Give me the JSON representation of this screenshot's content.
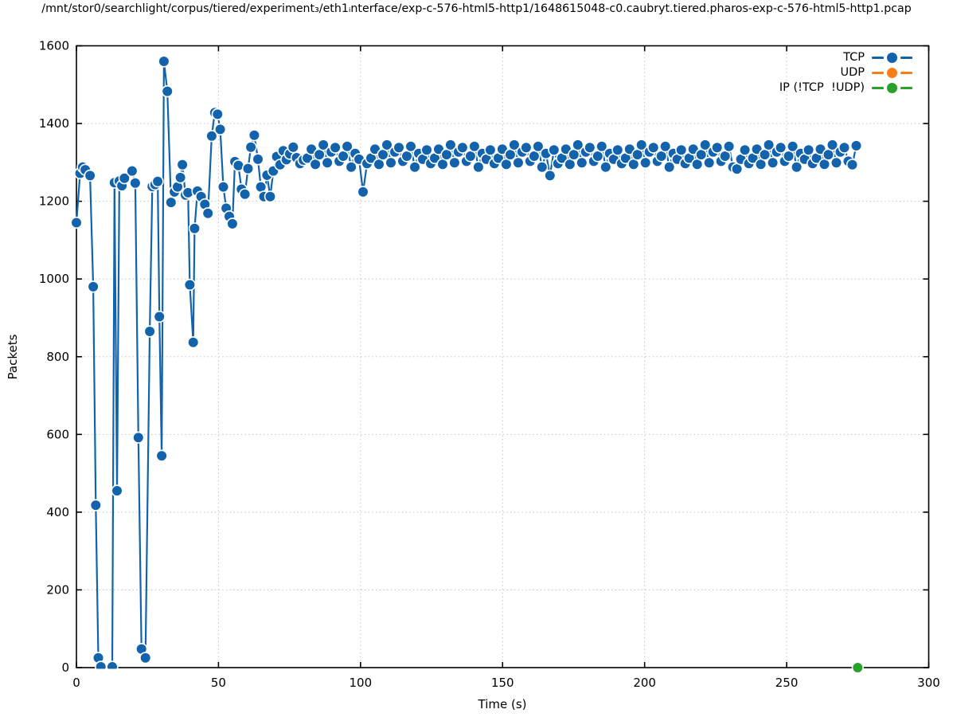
{
  "chart_data": {
    "type": "line",
    "title": "/mnt/stor0/searchlight/corpus/tiered/experiment₃/eth1ᵢnterface/exp-c-576-html5-http1/1648615048-c0.caubryt.tiered.pharos-exp-c-576-html5-http1.pcap",
    "xlabel": "Time (s)",
    "ylabel": "Packets",
    "xlim": [
      0,
      300
    ],
    "ylim": [
      0,
      1600
    ],
    "xticks": [
      0,
      50,
      100,
      150,
      200,
      250,
      300
    ],
    "yticks": [
      0,
      200,
      400,
      600,
      800,
      1000,
      1200,
      1400,
      1600
    ],
    "grid": true,
    "legend_position": "top-right",
    "marker": "circle",
    "series": [
      {
        "name": "TCP",
        "color": "#1263ab",
        "marker": "circle",
        "clip": true,
        "points": [
          [
            0.0,
            1145
          ],
          [
            1.3,
            1272
          ],
          [
            2.2,
            1288
          ],
          [
            3.1,
            1281
          ],
          [
            4.8,
            1266
          ],
          [
            5.9,
            980
          ],
          [
            6.8,
            418
          ],
          [
            7.7,
            25
          ],
          [
            8.6,
            2
          ],
          [
            12.6,
            2
          ],
          [
            13.4,
            1248
          ],
          [
            14.3,
            455
          ],
          [
            15.1,
            1252
          ],
          [
            16.0,
            1240
          ],
          [
            16.9,
            1259
          ],
          [
            19.6,
            1278
          ],
          [
            20.7,
            1247
          ],
          [
            21.8,
            592
          ],
          [
            22.9,
            48
          ],
          [
            24.3,
            25
          ],
          [
            25.8,
            865
          ],
          [
            26.7,
            1238
          ],
          [
            27.7,
            1243
          ],
          [
            28.6,
            1251
          ],
          [
            29.2,
            903
          ],
          [
            30.0,
            545
          ],
          [
            30.8,
            1560
          ],
          [
            32.0,
            1483
          ],
          [
            33.3,
            1197
          ],
          [
            34.5,
            1224
          ],
          [
            35.6,
            1237
          ],
          [
            36.6,
            1261
          ],
          [
            37.3,
            1294
          ],
          [
            38.4,
            1216
          ],
          [
            39.3,
            1222
          ],
          [
            39.9,
            985
          ],
          [
            41.1,
            837
          ],
          [
            41.6,
            1130
          ],
          [
            42.6,
            1226
          ],
          [
            43.9,
            1212
          ],
          [
            45.2,
            1192
          ],
          [
            46.3,
            1169
          ],
          [
            47.6,
            1368
          ],
          [
            48.7,
            1428
          ],
          [
            49.7,
            1424
          ],
          [
            50.6,
            1385
          ],
          [
            51.7,
            1237
          ],
          [
            52.7,
            1182
          ],
          [
            53.8,
            1161
          ],
          [
            54.9,
            1142
          ],
          [
            55.8,
            1302
          ],
          [
            57.0,
            1292
          ],
          [
            58.1,
            1231
          ],
          [
            59.3,
            1218
          ],
          [
            60.4,
            1284
          ],
          [
            61.4,
            1339
          ],
          [
            62.6,
            1370
          ],
          [
            63.9,
            1308
          ],
          [
            64.9,
            1237
          ],
          [
            66.0,
            1212
          ],
          [
            67.1,
            1267
          ],
          [
            68.2,
            1212
          ],
          [
            69.3,
            1278
          ],
          [
            70.5,
            1315
          ],
          [
            71.7,
            1294
          ],
          [
            72.8,
            1330
          ],
          [
            73.9,
            1307
          ],
          [
            75.1,
            1322
          ],
          [
            76.3,
            1339
          ],
          [
            77.5,
            1312
          ],
          [
            78.7,
            1297
          ],
          [
            79.9,
            1306
          ],
          [
            81.3,
            1311
          ],
          [
            82.7,
            1334
          ],
          [
            84.1,
            1295
          ],
          [
            85.5,
            1320
          ],
          [
            86.9,
            1345
          ],
          [
            88.3,
            1299
          ],
          [
            89.7,
            1327
          ],
          [
            91.1,
            1338
          ],
          [
            92.5,
            1303
          ],
          [
            93.9,
            1316
          ],
          [
            95.3,
            1341
          ],
          [
            96.7,
            1288
          ],
          [
            98.1,
            1323
          ],
          [
            99.5,
            1308
          ],
          [
            100.9,
            1224
          ],
          [
            102.3,
            1297
          ],
          [
            103.7,
            1311
          ],
          [
            105.1,
            1334
          ],
          [
            106.5,
            1295
          ],
          [
            107.9,
            1320
          ],
          [
            109.3,
            1345
          ],
          [
            110.7,
            1299
          ],
          [
            112.1,
            1327
          ],
          [
            113.5,
            1338
          ],
          [
            114.9,
            1303
          ],
          [
            116.3,
            1316
          ],
          [
            117.7,
            1341
          ],
          [
            119.1,
            1288
          ],
          [
            120.5,
            1323
          ],
          [
            121.9,
            1308
          ],
          [
            123.3,
            1332
          ],
          [
            124.7,
            1297
          ],
          [
            126.1,
            1311
          ],
          [
            127.5,
            1334
          ],
          [
            128.9,
            1295
          ],
          [
            130.3,
            1320
          ],
          [
            131.7,
            1345
          ],
          [
            133.1,
            1299
          ],
          [
            134.5,
            1327
          ],
          [
            135.9,
            1338
          ],
          [
            137.3,
            1303
          ],
          [
            138.7,
            1316
          ],
          [
            140.1,
            1341
          ],
          [
            141.5,
            1288
          ],
          [
            142.9,
            1323
          ],
          [
            144.3,
            1308
          ],
          [
            145.7,
            1332
          ],
          [
            147.1,
            1297
          ],
          [
            148.5,
            1311
          ],
          [
            149.9,
            1334
          ],
          [
            151.3,
            1295
          ],
          [
            152.7,
            1320
          ],
          [
            154.1,
            1345
          ],
          [
            155.5,
            1299
          ],
          [
            156.9,
            1327
          ],
          [
            158.3,
            1338
          ],
          [
            159.7,
            1303
          ],
          [
            161.1,
            1316
          ],
          [
            162.5,
            1341
          ],
          [
            163.9,
            1288
          ],
          [
            165.3,
            1323
          ],
          [
            166.7,
            1266
          ],
          [
            168.1,
            1332
          ],
          [
            169.5,
            1297
          ],
          [
            170.9,
            1311
          ],
          [
            172.3,
            1334
          ],
          [
            173.7,
            1295
          ],
          [
            175.1,
            1320
          ],
          [
            176.5,
            1345
          ],
          [
            177.9,
            1299
          ],
          [
            179.3,
            1327
          ],
          [
            180.7,
            1338
          ],
          [
            182.1,
            1303
          ],
          [
            183.5,
            1316
          ],
          [
            184.9,
            1341
          ],
          [
            186.3,
            1288
          ],
          [
            187.7,
            1323
          ],
          [
            189.1,
            1308
          ],
          [
            190.5,
            1332
          ],
          [
            191.9,
            1297
          ],
          [
            193.3,
            1311
          ],
          [
            194.7,
            1334
          ],
          [
            196.1,
            1295
          ],
          [
            197.5,
            1320
          ],
          [
            198.9,
            1345
          ],
          [
            200.3,
            1299
          ],
          [
            201.7,
            1327
          ],
          [
            203.1,
            1338
          ],
          [
            204.5,
            1303
          ],
          [
            205.9,
            1316
          ],
          [
            207.3,
            1341
          ],
          [
            208.7,
            1288
          ],
          [
            210.1,
            1323
          ],
          [
            211.5,
            1308
          ],
          [
            212.9,
            1332
          ],
          [
            214.3,
            1297
          ],
          [
            215.7,
            1311
          ],
          [
            217.1,
            1334
          ],
          [
            218.5,
            1295
          ],
          [
            219.9,
            1320
          ],
          [
            221.3,
            1345
          ],
          [
            222.7,
            1299
          ],
          [
            224.1,
            1327
          ],
          [
            225.5,
            1338
          ],
          [
            226.9,
            1303
          ],
          [
            228.3,
            1316
          ],
          [
            229.7,
            1341
          ],
          [
            231.1,
            1288
          ],
          [
            232.5,
            1283
          ],
          [
            233.9,
            1308
          ],
          [
            235.3,
            1332
          ],
          [
            236.7,
            1297
          ],
          [
            238.1,
            1311
          ],
          [
            239.5,
            1334
          ],
          [
            240.9,
            1295
          ],
          [
            242.3,
            1320
          ],
          [
            243.7,
            1345
          ],
          [
            245.1,
            1299
          ],
          [
            246.5,
            1327
          ],
          [
            247.9,
            1338
          ],
          [
            249.3,
            1303
          ],
          [
            250.7,
            1316
          ],
          [
            252.1,
            1341
          ],
          [
            253.5,
            1288
          ],
          [
            254.9,
            1323
          ],
          [
            256.3,
            1308
          ],
          [
            257.7,
            1332
          ],
          [
            259.1,
            1297
          ],
          [
            260.5,
            1311
          ],
          [
            261.9,
            1334
          ],
          [
            263.3,
            1295
          ],
          [
            264.7,
            1320
          ],
          [
            266.1,
            1345
          ],
          [
            267.5,
            1299
          ],
          [
            268.9,
            1327
          ],
          [
            270.3,
            1338
          ],
          [
            271.7,
            1303
          ],
          [
            273.1,
            1294
          ],
          [
            274.5,
            1343
          ]
        ]
      },
      {
        "name": "UDP",
        "color": "#fd7e17",
        "marker": "circle",
        "clip": true,
        "points": []
      },
      {
        "name": "IP (!TCP  !UDP)",
        "color": "#2ca02c",
        "marker": "circle",
        "clip": false,
        "points": [
          [
            275,
            0
          ]
        ]
      }
    ]
  }
}
